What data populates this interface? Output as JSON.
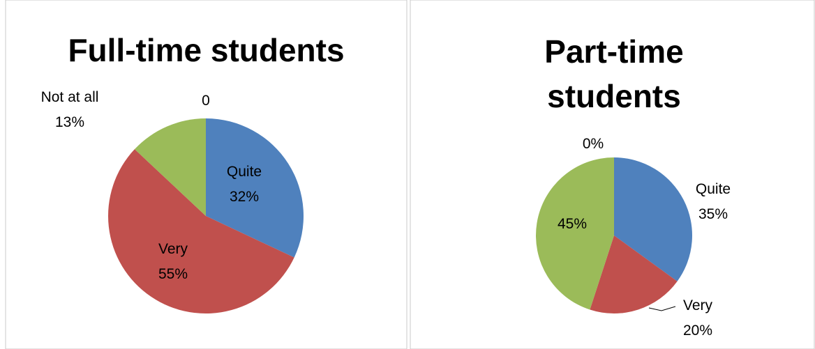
{
  "chart_data": [
    {
      "type": "pie",
      "title": "Full-time students",
      "categories": [
        "Quite",
        "Very",
        "Not at all",
        null
      ],
      "values": [
        32,
        55,
        13,
        0
      ],
      "value_labels": [
        "32%",
        "55%",
        "13%",
        "0"
      ],
      "colors": [
        "#4f81bd",
        "#c0504d",
        "#9bbb59",
        "#8064a2"
      ]
    },
    {
      "type": "pie",
      "title": "Part-time students",
      "categories": [
        "Quite",
        "Very",
        null,
        null
      ],
      "values": [
        35,
        20,
        45,
        0
      ],
      "value_labels": [
        "35%",
        "20%",
        "45%",
        "0%"
      ],
      "colors": [
        "#4f81bd",
        "#c0504d",
        "#9bbb59",
        "#8064a2"
      ]
    }
  ]
}
